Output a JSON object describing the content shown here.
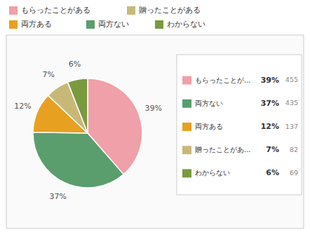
{
  "chart_data": {
    "type": "pie",
    "categories": [
      "もらったことが...",
      "両方ない",
      "両方ある",
      "贈ったことがあ...",
      "わからない"
    ],
    "values": [
      39,
      37,
      12,
      7,
      6
    ],
    "value_labels": [
      "39%",
      "37%",
      "12%",
      "7%",
      "6%"
    ],
    "counts": [
      455,
      435,
      137,
      82,
      69
    ],
    "colors": [
      "#f0a0a8",
      "#5a9e6e",
      "#e8a020",
      "#c8b878",
      "#7a9a40"
    ],
    "data_labels": true,
    "legend": "right",
    "top_legend": [
      {
        "name": "もらったことがある",
        "color": "#f0a0a8"
      },
      {
        "name": "贈ったことがある",
        "color": "#c8b878"
      }
    ],
    "bottom_legend": [
      {
        "name": "両方ある",
        "color": "#e8a020"
      },
      {
        "name": "両方ない",
        "color": "#5a9e6e"
      },
      {
        "name": "わからない",
        "color": "#7a9a40"
      }
    ]
  }
}
